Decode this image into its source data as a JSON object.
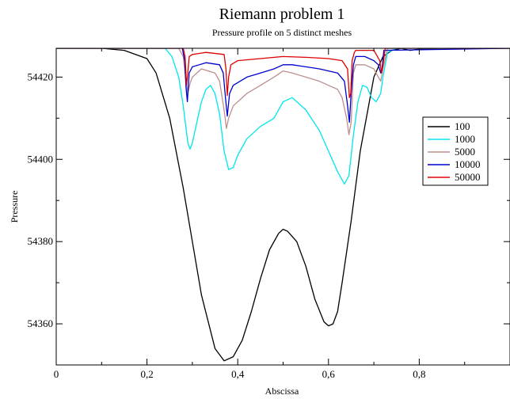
{
  "chart_data": {
    "type": "line",
    "title": "Riemann problem 1",
    "subtitle": "Pressure profile on 5 distinct meshes",
    "xlabel": "Abscissa",
    "ylabel": "Pressure",
    "xlim": [
      0,
      1
    ],
    "ylim": [
      54350,
      54427
    ],
    "x_ticks": [
      0,
      0.2,
      0.4,
      0.6,
      0.8
    ],
    "x_tick_labels": [
      "0",
      "0,2",
      "0,4",
      "0,6",
      "0,8"
    ],
    "y_ticks": [
      54360,
      54380,
      54400,
      54420
    ],
    "y_tick_labels": [
      "54360",
      "54380",
      "54400",
      "54420"
    ],
    "grid": false,
    "legend_position": "right",
    "series": [
      {
        "name": "100",
        "color": "#000000",
        "x": [
          0,
          0.1,
          0.15,
          0.2,
          0.22,
          0.25,
          0.28,
          0.3,
          0.32,
          0.35,
          0.37,
          0.39,
          0.41,
          0.43,
          0.45,
          0.47,
          0.49,
          0.5,
          0.51,
          0.53,
          0.55,
          0.57,
          0.59,
          0.6,
          0.61,
          0.62,
          0.63,
          0.65,
          0.67,
          0.69,
          0.7,
          0.72,
          0.74,
          0.76,
          0.78,
          0.8,
          0.85,
          1.0
        ],
        "y": [
          54427,
          54427,
          54426.5,
          54424.5,
          54421,
          54410,
          54393,
          54380,
          54367,
          54354,
          54351,
          54352,
          54356,
          54363,
          54371,
          54378,
          54382,
          54383,
          54382.5,
          54380,
          54374,
          54366,
          54360.5,
          54359.5,
          54360,
          54363,
          54370,
          54385,
          54402,
          54414,
          54420,
          54425,
          54426.5,
          54427,
          54426.5,
          54426.8,
          54427,
          54427
        ]
      },
      {
        "name": "1000",
        "color": "#00e5ee",
        "x": [
          0,
          0.24,
          0.255,
          0.27,
          0.28,
          0.29,
          0.295,
          0.3,
          0.31,
          0.32,
          0.33,
          0.34,
          0.35,
          0.36,
          0.37,
          0.38,
          0.39,
          0.4,
          0.42,
          0.45,
          0.48,
          0.5,
          0.52,
          0.55,
          0.58,
          0.6,
          0.62,
          0.635,
          0.645,
          0.655,
          0.665,
          0.675,
          0.685,
          0.695,
          0.705,
          0.715,
          0.72,
          0.73,
          0.75,
          0.8,
          1.0
        ],
        "y": [
          54427,
          54427,
          54425,
          54420,
          54413,
          54404,
          54402.5,
          54404,
          54409,
          54414,
          54417,
          54418,
          54416,
          54411,
          54402,
          54397.5,
          54398,
          54401,
          54405,
          54408,
          54410,
          54414,
          54415,
          54412,
          54407,
          54402,
          54397,
          54394,
          54396,
          54406,
          54414,
          54418,
          54417.5,
          54415,
          54414,
          54416,
          54420,
          54426,
          54427,
          54427,
          54427
        ]
      },
      {
        "name": "5000",
        "color": "#bc8f8f",
        "x": [
          0,
          0.27,
          0.28,
          0.285,
          0.29,
          0.295,
          0.3,
          0.32,
          0.35,
          0.36,
          0.37,
          0.375,
          0.38,
          0.39,
          0.42,
          0.45,
          0.48,
          0.5,
          0.52,
          0.55,
          0.58,
          0.6,
          0.62,
          0.63,
          0.64,
          0.645,
          0.65,
          0.655,
          0.66,
          0.68,
          0.7,
          0.71,
          0.715,
          0.72,
          0.73,
          1.0
        ],
        "y": [
          54427,
          54427,
          54425,
          54420,
          54416,
          54418.5,
          54420,
          54422,
          54421,
          54419,
          54412,
          54407.5,
          54410,
          54413,
          54416,
          54418,
          54420,
          54421.5,
          54421,
          54420,
          54419,
          54418,
          54417,
          54415,
          54410,
          54406,
          54409,
          54421,
          54423,
          54423,
          54422,
          54420,
          54419,
          54422,
          54427,
          54427
        ]
      },
      {
        "name": "10000",
        "color": "#0000cd",
        "x": [
          0,
          0.278,
          0.283,
          0.286,
          0.289,
          0.293,
          0.3,
          0.33,
          0.36,
          0.368,
          0.373,
          0.377,
          0.382,
          0.39,
          0.42,
          0.45,
          0.48,
          0.5,
          0.52,
          0.55,
          0.58,
          0.6,
          0.62,
          0.635,
          0.642,
          0.646,
          0.65,
          0.655,
          0.66,
          0.68,
          0.7,
          0.71,
          0.715,
          0.718,
          0.722,
          1.0
        ],
        "y": [
          54427,
          54427,
          54424,
          54417.5,
          54414,
          54421,
          54422.5,
          54423.5,
          54423,
          54421,
          54415,
          54410.5,
          54416,
          54418,
          54420,
          54421,
          54422,
          54423,
          54423,
          54422.5,
          54422,
          54421.5,
          54421,
          54419,
          54413,
          54409,
          54416,
          54423,
          54425,
          54425,
          54424,
          54423,
          54421,
          54422,
          54426.5,
          54427
        ]
      },
      {
        "name": "50000",
        "color": "#dd0000",
        "x": [
          0,
          0.28,
          0.284,
          0.287,
          0.29,
          0.293,
          0.3,
          0.33,
          0.37,
          0.374,
          0.377,
          0.38,
          0.385,
          0.4,
          0.45,
          0.5,
          0.55,
          0.6,
          0.63,
          0.642,
          0.646,
          0.649,
          0.652,
          0.657,
          0.66,
          0.7,
          0.713,
          0.717,
          0.72,
          0.725,
          1.0
        ],
        "y": [
          54427,
          54427,
          54425,
          54418,
          54421,
          54425,
          54425.5,
          54426,
          54425.5,
          54422,
          54415.5,
          54420,
          54423,
          54424,
          54424.5,
          54425,
          54424.8,
          54424.5,
          54424,
          54422,
          54415,
          54416,
          54424,
          54426,
          54426.5,
          54426.5,
          54424,
          54421,
          54423,
          54427,
          54427
        ]
      }
    ]
  }
}
